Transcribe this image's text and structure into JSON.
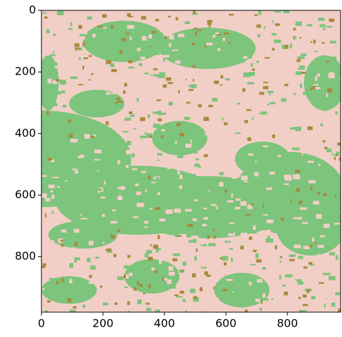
{
  "chart_data": {
    "type": "image",
    "xlim": [
      0,
      973
    ],
    "ylim": [
      980,
      0
    ],
    "xticks": [
      0,
      200,
      400,
      600,
      800
    ],
    "yticks": [
      0,
      200,
      400,
      600,
      800
    ],
    "colors": [
      "#f2cfc6",
      "#7dc47c",
      "#a88a3e"
    ]
  }
}
